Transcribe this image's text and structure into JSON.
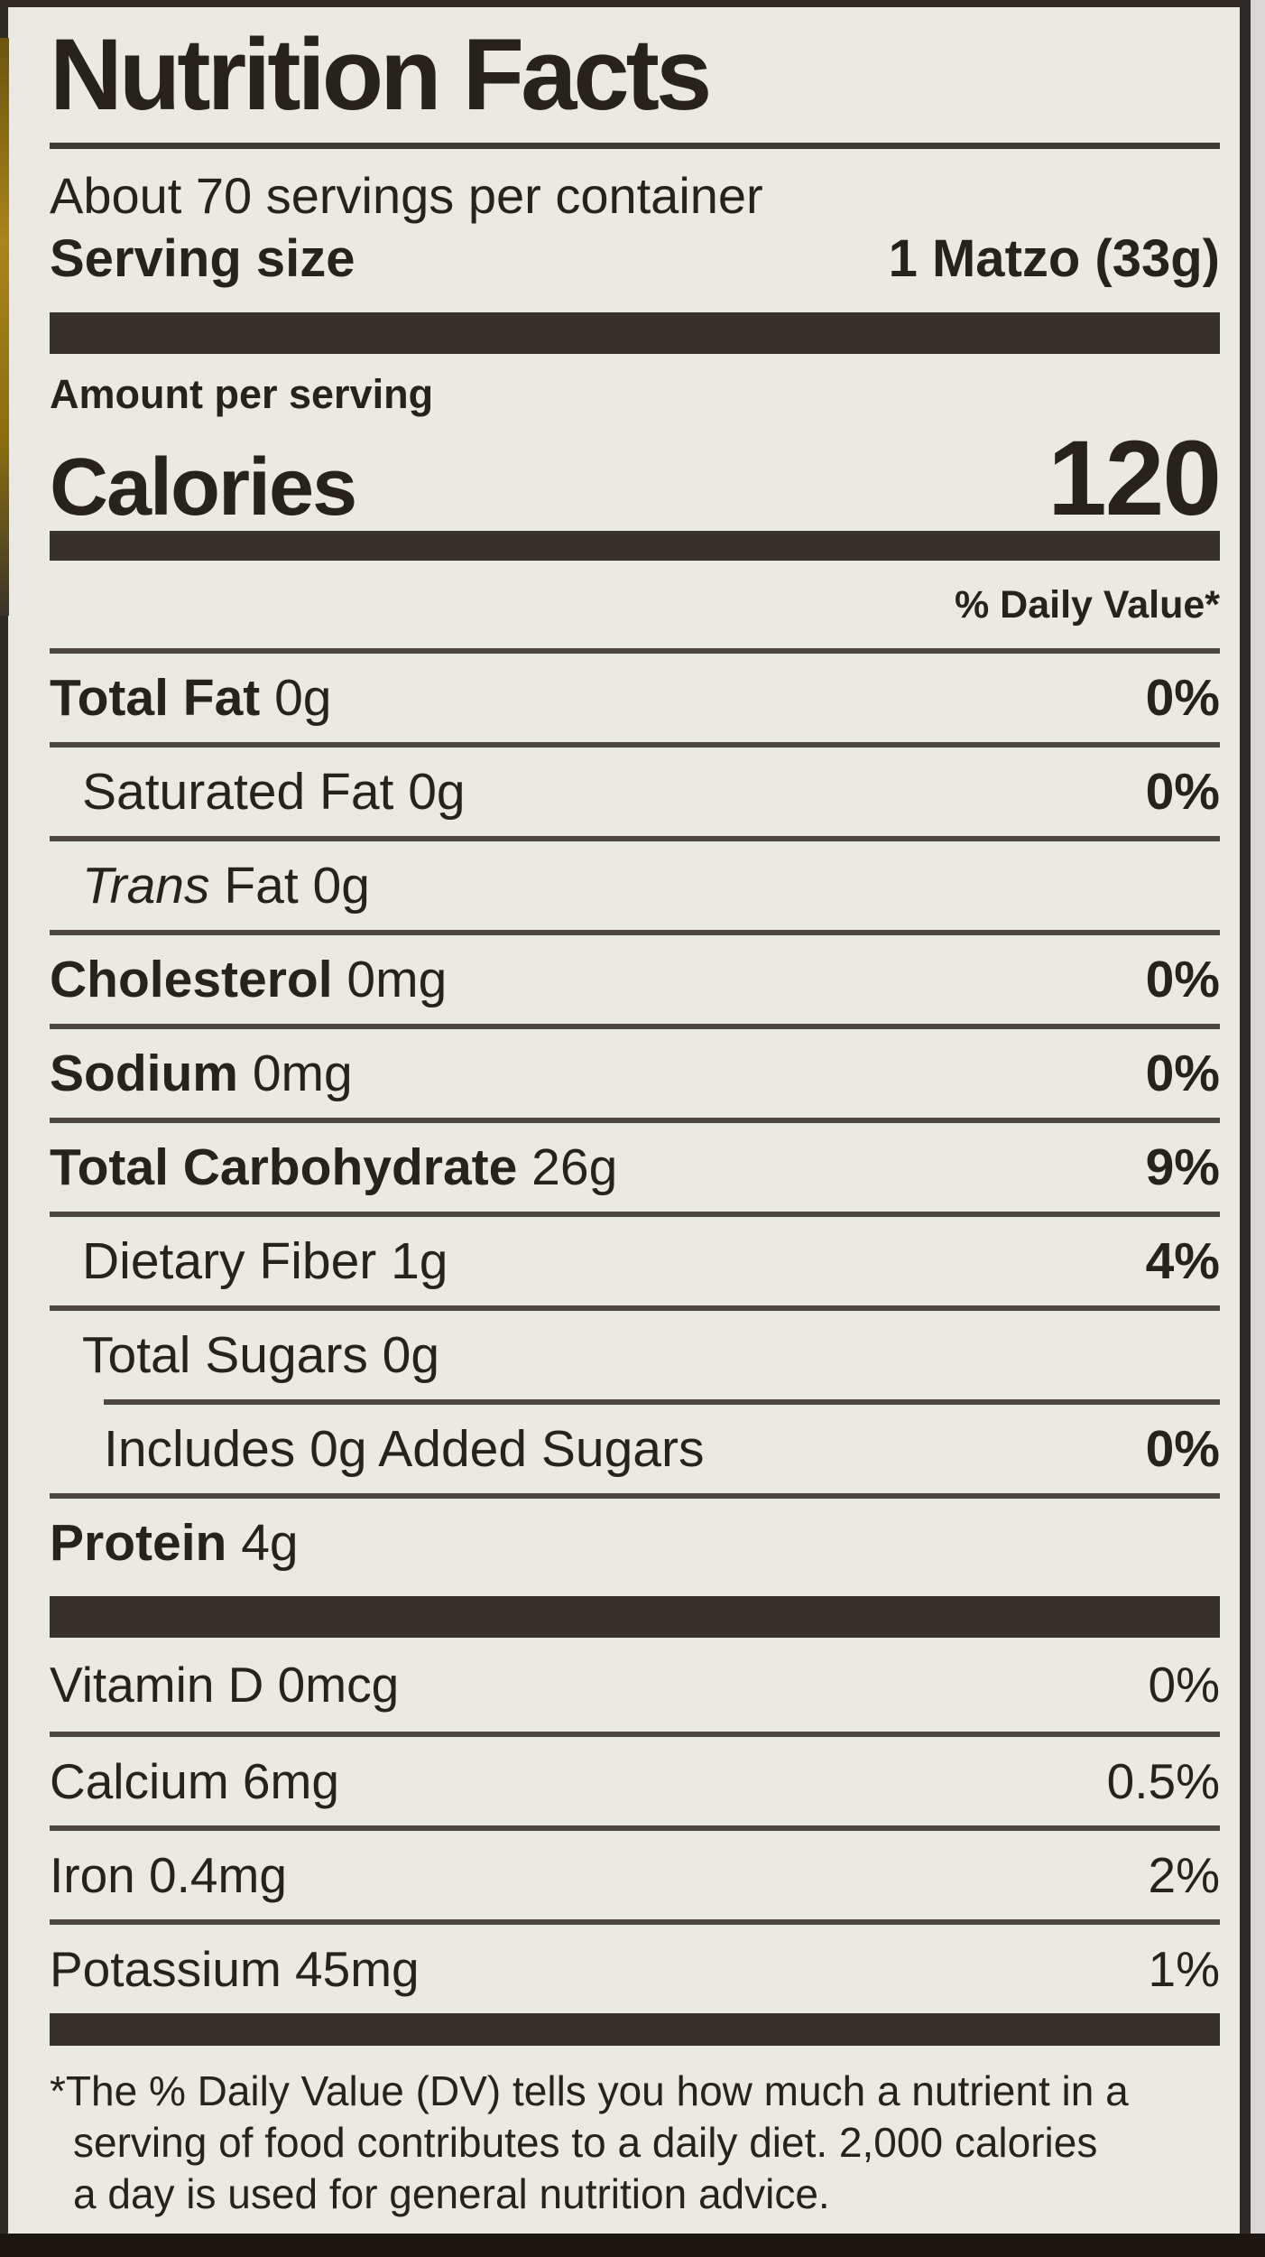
{
  "title": "Nutrition Facts",
  "servings_per_container": "About 70 servings per container",
  "serving_size_label": "Serving size",
  "serving_size_value": "1 Matzo (33g)",
  "amount_per_serving": "Amount per serving",
  "calories_label": "Calories",
  "calories_value": "120",
  "daily_value_header": "% Daily Value*",
  "nutrients": [
    {
      "name": "Total Fat",
      "rest": " 0g",
      "percent": "0%"
    },
    {
      "name": "Saturated Fat",
      "rest": " 0g",
      "percent": "0%"
    },
    {
      "name": "Trans",
      "rest": " Fat 0g",
      "percent": ""
    },
    {
      "name": "Cholesterol",
      "rest": " 0mg",
      "percent": "0%"
    },
    {
      "name": "Sodium",
      "rest": " 0mg",
      "percent": "0%"
    },
    {
      "name": "Total Carbohydrate",
      "rest": " 26g",
      "percent": "9%"
    },
    {
      "name": "Dietary Fiber",
      "rest": " 1g",
      "percent": "4%"
    },
    {
      "name": "Total Sugars",
      "rest": " 0g",
      "percent": ""
    },
    {
      "name": "Includes 0g Added Sugars",
      "rest": "",
      "percent": "0%"
    },
    {
      "name": "Protein",
      "rest": " 4g",
      "percent": ""
    }
  ],
  "vitamins": [
    {
      "name": "Vitamin D 0mcg",
      "percent": "0%"
    },
    {
      "name": "Calcium 6mg",
      "percent": "0.5%"
    },
    {
      "name": "Iron 0.4mg",
      "percent": "2%"
    },
    {
      "name": "Potassium 45mg",
      "percent": "1%"
    }
  ],
  "footnote_lines": [
    "*The % Daily Value (DV) tells you how much a nutrient in a",
    "serving of food contributes to a daily diet. 2,000 calories",
    "a day is used for general nutrition advice."
  ],
  "colors": {
    "ink": "#28221d",
    "label_background": "#eae9e4",
    "separator_bar": "#38302a",
    "package_edge_yellow": "#a9841c"
  }
}
